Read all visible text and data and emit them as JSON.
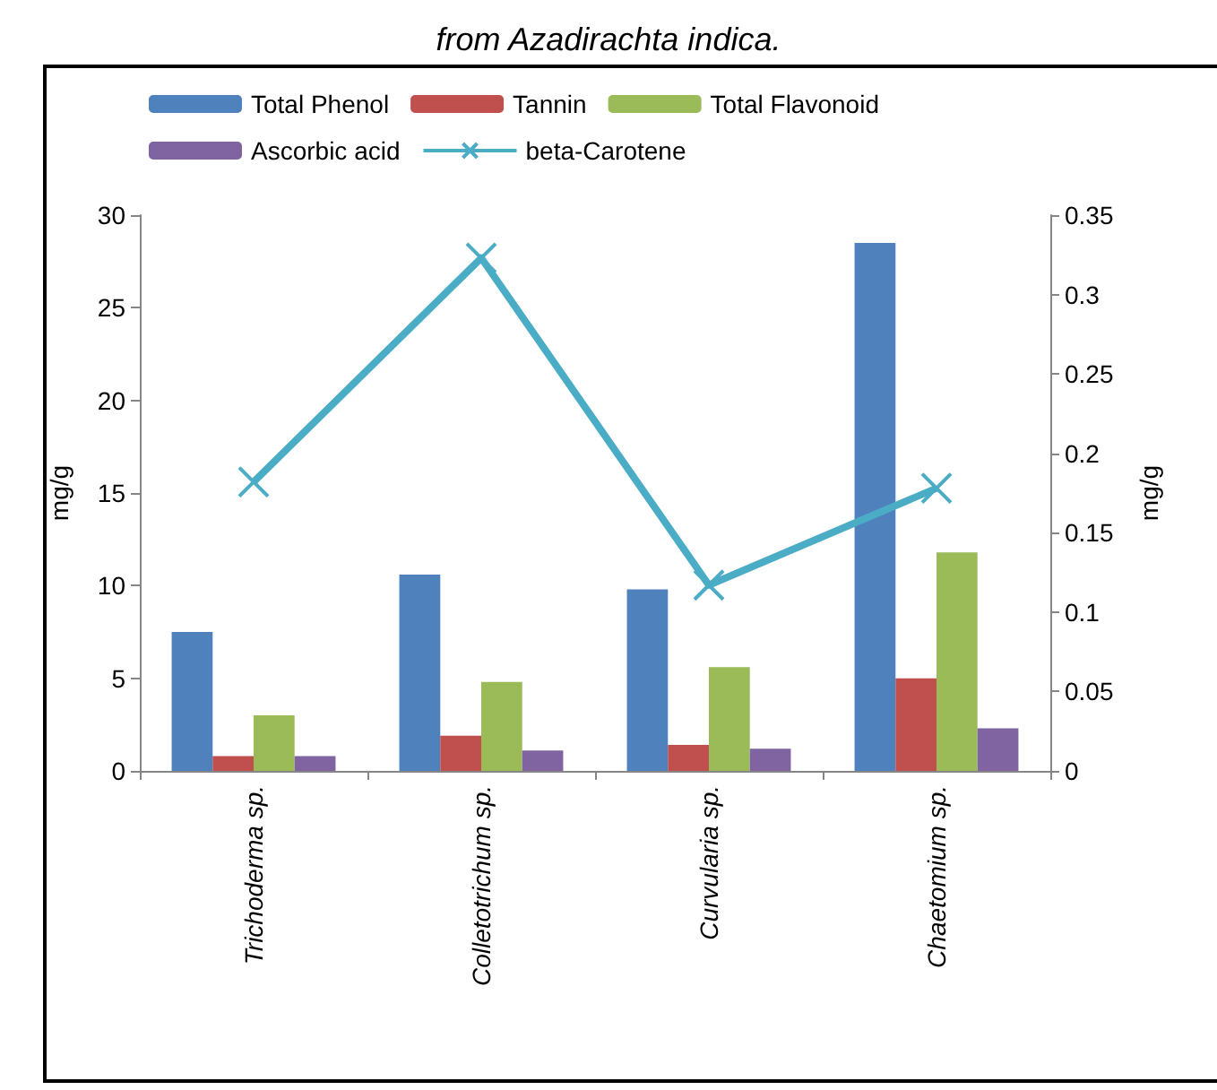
{
  "chart_data": {
    "type": "bar",
    "title": "from Azadirachta indica.",
    "categories": [
      "Trichoderma sp.",
      "Colletotrichum sp.",
      "Curvularia sp.",
      "Chaetomium sp."
    ],
    "series": [
      {
        "name": "Total Phenol",
        "color": "#4f81bd",
        "values": [
          7.5,
          10.6,
          9.8,
          28.5
        ]
      },
      {
        "name": "Tannin",
        "color": "#c0504d",
        "values": [
          0.8,
          1.9,
          1.4,
          5.0
        ]
      },
      {
        "name": "Total Flavonoid",
        "color": "#9bbb59",
        "values": [
          3.0,
          4.8,
          5.6,
          11.8
        ]
      },
      {
        "name": "Ascorbic acid",
        "color": "#8064a2",
        "values": [
          0.8,
          1.1,
          1.2,
          2.3
        ]
      },
      {
        "name": "beta-Carotene",
        "color": "#4bacc6",
        "type": "line",
        "axis": "y2",
        "marker": "cross",
        "values": [
          0.182,
          0.323,
          0.117,
          0.178
        ]
      }
    ],
    "ylabel": "mg/g",
    "y2label": "mg/g",
    "ylim": [
      0,
      30
    ],
    "yticks": [
      0,
      5,
      10,
      15,
      20,
      25,
      30
    ],
    "y2lim": [
      0,
      0.35
    ],
    "y2ticks": [
      0,
      0.05,
      0.1,
      0.15,
      0.2,
      0.25,
      0.3,
      0.35
    ],
    "legend": "top",
    "grid": false
  }
}
